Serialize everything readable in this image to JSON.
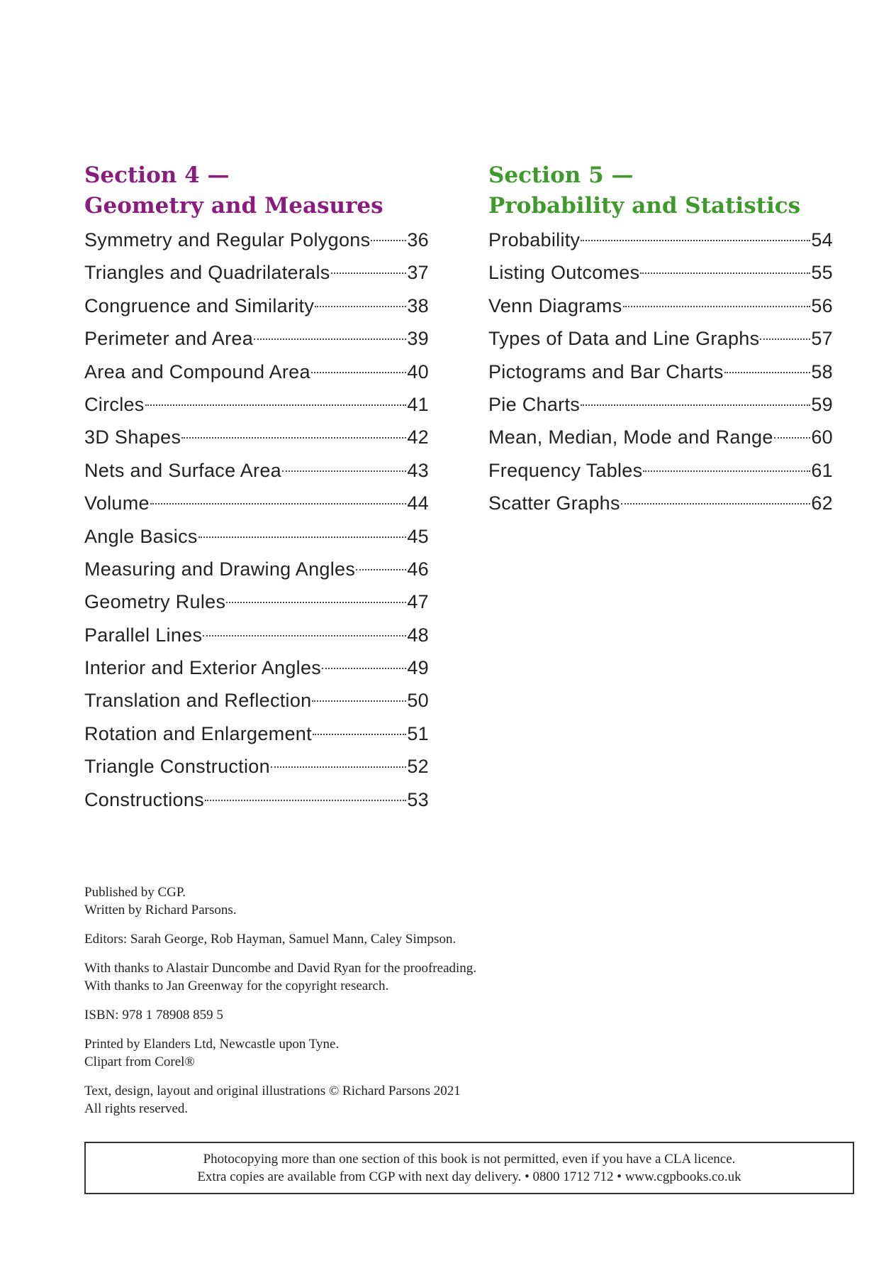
{
  "sections": [
    {
      "heading": [
        "Section 4 —",
        "Geometry and Measures"
      ],
      "color": "#8b1c7f",
      "entries": [
        {
          "title": "Symmetry and Regular Polygons",
          "page": 36
        },
        {
          "title": "Triangles and Quadrilaterals",
          "page": 37
        },
        {
          "title": "Congruence and Similarity",
          "page": 38
        },
        {
          "title": "Perimeter and Area",
          "page": 39
        },
        {
          "title": "Area and Compound Area",
          "page": 40
        },
        {
          "title": "Circles",
          "page": 41
        },
        {
          "title": "3D Shapes",
          "page": 42
        },
        {
          "title": "Nets and Surface Area",
          "page": 43
        },
        {
          "title": "Volume",
          "page": 44
        },
        {
          "title": "Angle Basics",
          "page": 45
        },
        {
          "title": "Measuring and Drawing Angles",
          "page": 46
        },
        {
          "title": "Geometry Rules",
          "page": 47
        },
        {
          "title": "Parallel Lines",
          "page": 48
        },
        {
          "title": "Interior and Exterior Angles",
          "page": 49
        },
        {
          "title": "Translation and Reflection",
          "page": 50
        },
        {
          "title": "Rotation and Enlargement",
          "page": 51
        },
        {
          "title": "Triangle Construction",
          "page": 52
        },
        {
          "title": "Constructions",
          "page": 53
        }
      ]
    },
    {
      "heading": [
        "Section 5 —",
        "Probability and Statistics"
      ],
      "color": "#3d9a2b",
      "entries": [
        {
          "title": "Probability",
          "page": 54
        },
        {
          "title": "Listing Outcomes",
          "page": 55
        },
        {
          "title": "Venn Diagrams",
          "page": 56
        },
        {
          "title": "Types of Data and Line Graphs",
          "page": 57
        },
        {
          "title": "Pictograms and Bar Charts",
          "page": 58
        },
        {
          "title": "Pie Charts",
          "page": 59
        },
        {
          "title": "Mean, Median, Mode and Range",
          "page": 60
        },
        {
          "title": "Frequency Tables",
          "page": 61
        },
        {
          "title": "Scatter Graphs",
          "page": 62
        }
      ]
    }
  ],
  "imprint": [
    [
      "Published by CGP.",
      "Written by Richard Parsons."
    ],
    [
      "Editors: Sarah George, Rob Hayman, Samuel Mann, Caley Simpson."
    ],
    [
      "With thanks to Alastair Duncombe and David Ryan for the proofreading.",
      "With thanks to Jan Greenway for the copyright research."
    ],
    [
      "ISBN:  978 1 78908 859 5"
    ],
    [
      "Printed by Elanders Ltd, Newcastle upon Tyne.",
      "Clipart from Corel®"
    ],
    [
      "Text, design, layout and original illustrations  © Richard Parsons 2021",
      "All rights reserved."
    ]
  ],
  "notice": [
    "Photocopying more than one section of this book is not permitted, even if you have a CLA licence.",
    "Extra copies are available from CGP with next day delivery.  •  0800 1712 712  •  www.cgpbooks.co.uk"
  ]
}
